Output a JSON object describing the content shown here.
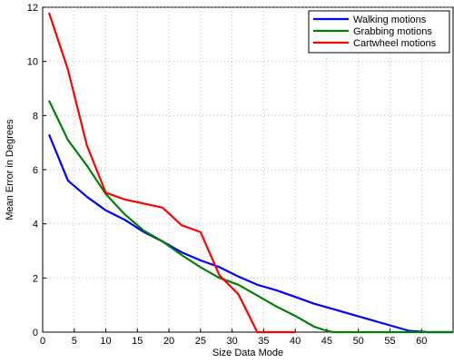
{
  "chart_data": {
    "type": "line",
    "xlabel": "Size Data Mode",
    "ylabel": "Mean Error in Degrees",
    "xlim": [
      0,
      65
    ],
    "ylim": [
      0,
      12
    ],
    "xticks": [
      0,
      5,
      10,
      15,
      20,
      25,
      30,
      35,
      40,
      45,
      50,
      55,
      60
    ],
    "yticks": [
      0,
      2,
      4,
      6,
      8,
      10,
      12
    ],
    "grid": true,
    "legend_position": "top-right",
    "series": [
      {
        "name": "Walking motions",
        "color": "#0000ff",
        "x": [
          1,
          4,
          7,
          10,
          13,
          16,
          19,
          22,
          25,
          28,
          31,
          34,
          37,
          40,
          43,
          46,
          49,
          52,
          55,
          58,
          61,
          65
        ],
        "y": [
          7.3,
          5.6,
          5.0,
          4.5,
          4.15,
          3.7,
          3.35,
          2.95,
          2.65,
          2.4,
          2.05,
          1.75,
          1.55,
          1.3,
          1.05,
          0.85,
          0.65,
          0.45,
          0.25,
          0.05,
          0.0,
          0.0
        ]
      },
      {
        "name": "Grabbing motions",
        "color": "#008000",
        "x": [
          1,
          4,
          7,
          10,
          13,
          16,
          19,
          22,
          25,
          28,
          31,
          34,
          37,
          40,
          43,
          45,
          46,
          50,
          55,
          60,
          65
        ],
        "y": [
          8.55,
          7.1,
          6.15,
          5.1,
          4.35,
          3.75,
          3.35,
          2.85,
          2.4,
          2.0,
          1.75,
          1.35,
          0.95,
          0.6,
          0.2,
          0.05,
          0.0,
          0.0,
          0.0,
          0.0,
          0.0
        ]
      },
      {
        "name": "Cartwheel motions",
        "color": "#ff0000",
        "x": [
          1,
          4,
          7,
          10,
          13,
          16,
          19,
          22,
          25,
          28,
          31,
          34,
          37,
          40
        ],
        "y": [
          11.8,
          9.7,
          6.9,
          5.15,
          4.9,
          4.75,
          4.6,
          3.95,
          3.7,
          2.1,
          1.4,
          0.0,
          0.0,
          0.0
        ]
      }
    ]
  }
}
